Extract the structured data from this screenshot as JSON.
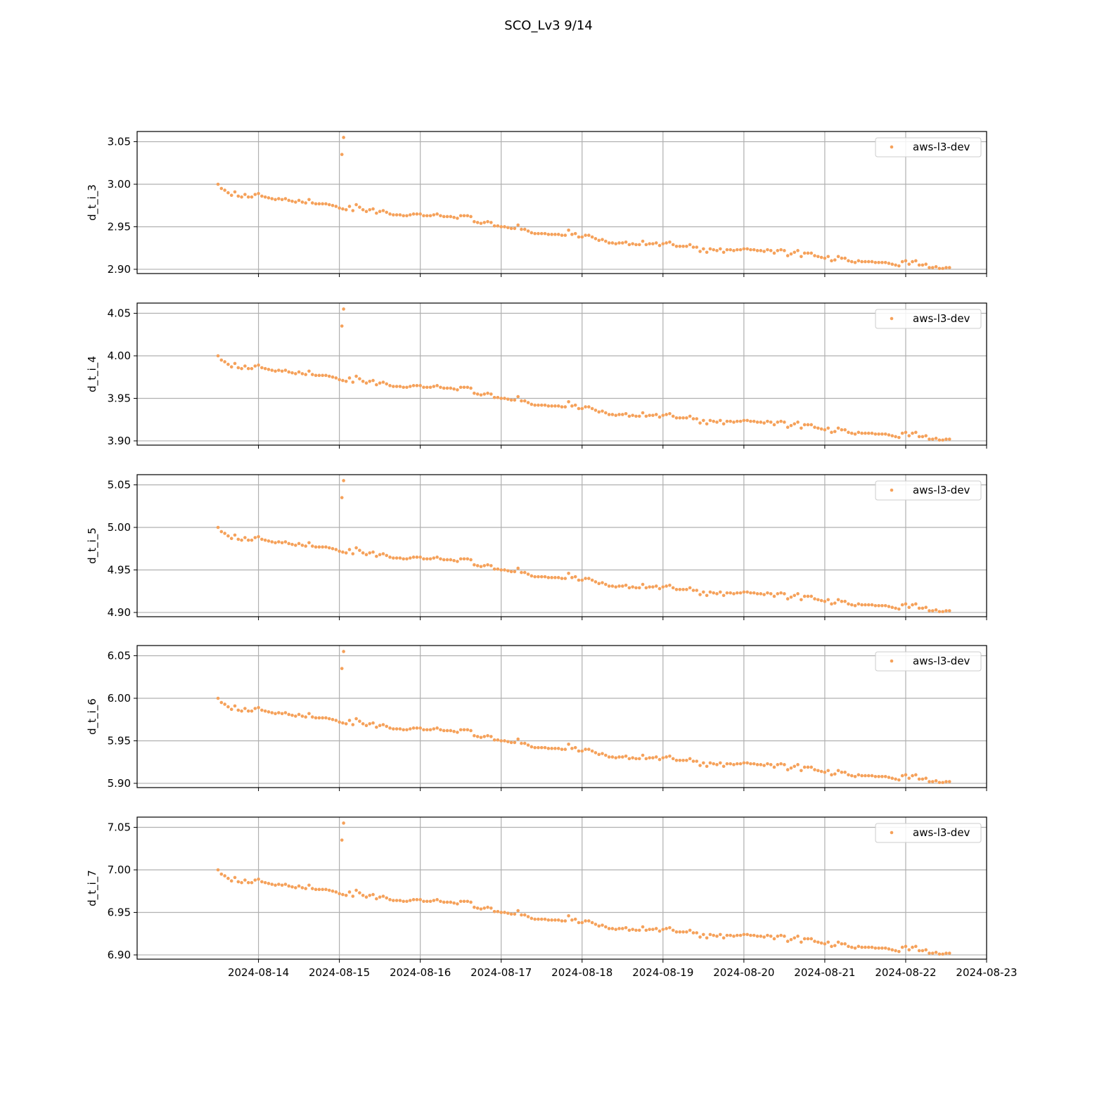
{
  "figure": {
    "title": "SCO_Lv3 9/14"
  },
  "colors": {
    "series": "#f5a15a",
    "grid": "#b0b0b0",
    "axis": "#000000"
  },
  "x_axis": {
    "type": "date",
    "range": [
      "2024-08-12T12:00",
      "2024-08-23T00:00"
    ],
    "ticks": [
      "2024-08-14",
      "2024-08-15",
      "2024-08-16",
      "2024-08-17",
      "2024-08-18",
      "2024-08-19",
      "2024-08-20",
      "2024-08-21",
      "2024-08-22",
      "2024-08-23"
    ]
  },
  "chart_data": [
    {
      "type": "scatter",
      "ylabel": "d_t_i_3",
      "ylim": [
        2.895,
        3.062
      ],
      "yticks": [
        "2.90",
        "2.95",
        "3.00",
        "3.05"
      ],
      "legend": "top-right",
      "grid": true,
      "series": [
        {
          "name": "aws-l3-dev",
          "offset": 0
        }
      ]
    },
    {
      "type": "scatter",
      "ylabel": "d_t_i_4",
      "ylim": [
        3.895,
        4.062
      ],
      "yticks": [
        "3.90",
        "3.95",
        "4.00",
        "4.05"
      ],
      "legend": "top-right",
      "grid": true,
      "series": [
        {
          "name": "aws-l3-dev",
          "offset": 1
        }
      ]
    },
    {
      "type": "scatter",
      "ylabel": "d_t_i_5",
      "ylim": [
        4.895,
        5.062
      ],
      "yticks": [
        "4.90",
        "4.95",
        "5.00",
        "5.05"
      ],
      "legend": "top-right",
      "grid": true,
      "series": [
        {
          "name": "aws-l3-dev",
          "offset": 2
        }
      ]
    },
    {
      "type": "scatter",
      "ylabel": "d_t_i_6",
      "ylim": [
        5.895,
        6.062
      ],
      "yticks": [
        "5.90",
        "5.95",
        "6.00",
        "6.05"
      ],
      "legend": "top-right",
      "grid": true,
      "series": [
        {
          "name": "aws-l3-dev",
          "offset": 3
        }
      ]
    },
    {
      "type": "scatter",
      "ylabel": "d_t_i_7",
      "ylim": [
        6.895,
        7.062
      ],
      "yticks": [
        "6.90",
        "6.95",
        "7.00",
        "7.05"
      ],
      "legend": "top-right",
      "grid": true,
      "series": [
        {
          "name": "aws-l3-dev",
          "offset": 4
        }
      ]
    }
  ],
  "series_points": {
    "name": "aws-l3-dev",
    "start": "2024-08-13T12:00",
    "step_hours": 1,
    "base_values": [
      3.0,
      2.995,
      2.993,
      2.99,
      2.987,
      2.991,
      2.986,
      2.985,
      2.988,
      2.985,
      2.985,
      2.988,
      2.989,
      2.986,
      2.985,
      2.984,
      2.983,
      2.982,
      2.983,
      2.982,
      2.983,
      2.981,
      2.98,
      2.979,
      2.981,
      2.979,
      2.978,
      2.982,
      2.978,
      2.977,
      2.977,
      2.977,
      2.977,
      2.976,
      2.975,
      2.974,
      2.972,
      2.971,
      2.97,
      2.974,
      2.969,
      2.976,
      2.973,
      2.97,
      2.968,
      2.97,
      2.971,
      2.966,
      2.968,
      2.969,
      2.967,
      2.965,
      2.964,
      2.964,
      2.964,
      2.963,
      2.963,
      2.964,
      2.965,
      2.965,
      2.965,
      2.963,
      2.963,
      2.963,
      2.964,
      2.965,
      2.963,
      2.962,
      2.962,
      2.962,
      2.961,
      2.96,
      2.963,
      2.963,
      2.963,
      2.962,
      2.956,
      2.955,
      2.954,
      2.955,
      2.956,
      2.955,
      2.951,
      2.951,
      2.95,
      2.95,
      2.949,
      2.948,
      2.948,
      2.952,
      2.947,
      2.947,
      2.945,
      2.943,
      2.942,
      2.942,
      2.942,
      2.942,
      2.941,
      2.941,
      2.941,
      2.941,
      2.94,
      2.94,
      2.946,
      2.941,
      2.942,
      2.938,
      2.938,
      2.94,
      2.94,
      2.938,
      2.936,
      2.934,
      2.935,
      2.933,
      2.931,
      2.931,
      2.93,
      2.931,
      2.931,
      2.932,
      2.929,
      2.93,
      2.929,
      2.929,
      2.933,
      2.929,
      2.93,
      2.93,
      2.931,
      2.928,
      2.93,
      2.931,
      2.932,
      2.929,
      2.927,
      2.927,
      2.927,
      2.927,
      2.929,
      2.926,
      2.926,
      2.921,
      2.924,
      2.92,
      2.924,
      2.923,
      2.922,
      2.924,
      2.92,
      2.923,
      2.923,
      2.922,
      2.923,
      2.923,
      2.924,
      2.924,
      2.923,
      2.923,
      2.922,
      2.922,
      2.921,
      2.923,
      2.922,
      2.919,
      2.922,
      2.923,
      2.922,
      2.916,
      2.918,
      2.92,
      2.922,
      2.915,
      2.919,
      2.919,
      2.919,
      2.916,
      2.915,
      2.914,
      2.913,
      2.915,
      2.91,
      2.911,
      2.915,
      2.913,
      2.913,
      2.91,
      2.909,
      2.908,
      2.91,
      2.909,
      2.909,
      2.909,
      2.909,
      2.908,
      2.908,
      2.908,
      2.908,
      2.907,
      2.906,
      2.905,
      2.904,
      2.909,
      2.91,
      2.906,
      2.909,
      2.91,
      2.905,
      2.905,
      2.906,
      2.902,
      2.902,
      2.903,
      2.901,
      2.901,
      2.902,
      2.902
    ],
    "outliers": [
      {
        "time": "2024-08-15T00:45",
        "value": 3.035
      },
      {
        "time": "2024-08-15T01:15",
        "value": 3.055
      }
    ]
  }
}
